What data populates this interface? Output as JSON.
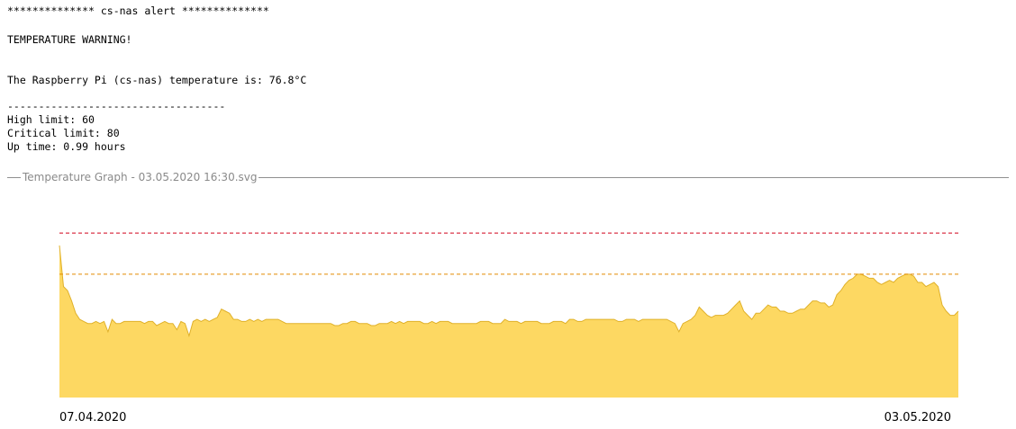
{
  "email": {
    "header": "************** cs-nas alert **************",
    "warning": "TEMPERATURE WARNING!",
    "temperature_line": "The Raspberry Pi (cs-nas) temperature is: 76.8°C",
    "separator": "-----------------------------------",
    "high_limit": "High limit: 60",
    "critical_limit": "Critical limit: 80",
    "uptime": "Up time: 0.99 hours"
  },
  "attachment": {
    "label": "Temperature Graph - 03.05.2020 16:30.svg"
  },
  "chart_data": {
    "type": "area",
    "x_labels": [
      "07.04.2020",
      "03.05.2020"
    ],
    "ylim": [
      0,
      84
    ],
    "thresholds": [
      {
        "value": 60,
        "color": "#e38a00"
      },
      {
        "value": 80,
        "color": "#d0021b"
      }
    ],
    "fill_color": "#fdd862",
    "stroke_color": "#e0b12a",
    "grid": false,
    "values": [
      74,
      54,
      52,
      47,
      41,
      38,
      37,
      36,
      36,
      37,
      36,
      37,
      32,
      38,
      36,
      36,
      37,
      37,
      37,
      37,
      37,
      36,
      37,
      37,
      35,
      36,
      37,
      36,
      36,
      33,
      37,
      36,
      30,
      37,
      38,
      37,
      38,
      37,
      38,
      39,
      43,
      42,
      41,
      38,
      38,
      37,
      37,
      38,
      37,
      38,
      37,
      38,
      38,
      38,
      38,
      37,
      36,
      36,
      36,
      36,
      36,
      36,
      36,
      36,
      36,
      36,
      36,
      36,
      35,
      35,
      36,
      36,
      37,
      37,
      36,
      36,
      36,
      35,
      35,
      36,
      36,
      36,
      37,
      36,
      37,
      36,
      37,
      37,
      37,
      37,
      36,
      36,
      37,
      36,
      37,
      37,
      37,
      36,
      36,
      36,
      36,
      36,
      36,
      36,
      37,
      37,
      37,
      36,
      36,
      36,
      38,
      37,
      37,
      37,
      36,
      37,
      37,
      37,
      37,
      36,
      36,
      36,
      37,
      37,
      37,
      36,
      38,
      38,
      37,
      37,
      38,
      38,
      38,
      38,
      38,
      38,
      38,
      38,
      37,
      37,
      38,
      38,
      38,
      37,
      38,
      38,
      38,
      38,
      38,
      38,
      38,
      37,
      36,
      32,
      36,
      37,
      38,
      40,
      44,
      42,
      40,
      39,
      40,
      40,
      40,
      41,
      43,
      45,
      47,
      42,
      40,
      38,
      41,
      41,
      43,
      45,
      44,
      44,
      42,
      42,
      41,
      41,
      42,
      43,
      43,
      45,
      47,
      47,
      46,
      46,
      44,
      45,
      50,
      52,
      55,
      57,
      58,
      60,
      60,
      59,
      58,
      58,
      56,
      55,
      56,
      57,
      56,
      58,
      59,
      60,
      60,
      59,
      56,
      56,
      54,
      55,
      56,
      54,
      45,
      42,
      40,
      40,
      42
    ]
  }
}
